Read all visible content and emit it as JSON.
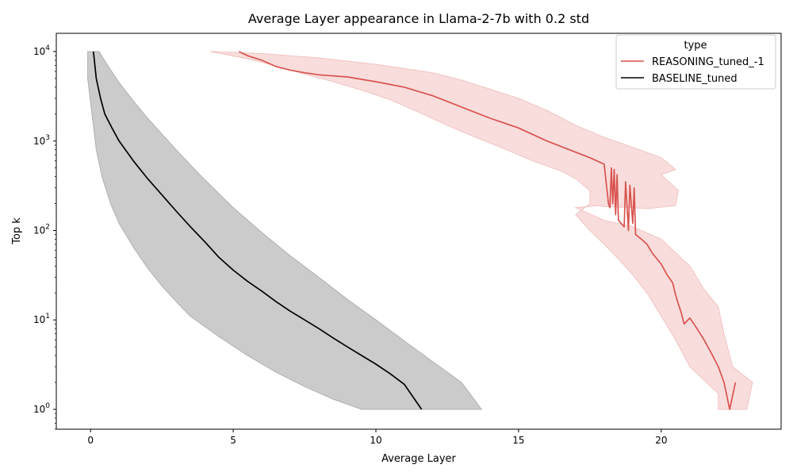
{
  "chart_data": {
    "type": "line",
    "title": "Average Layer appearance in Llama-2-7b with 0.2 std",
    "xlabel": "Average Layer",
    "ylabel": "Top k",
    "xlim": [
      -1.2,
      24.2
    ],
    "ylim": [
      0.6,
      16000
    ],
    "y_scale": "log",
    "grid": false,
    "x_ticks": [
      {
        "value": 0,
        "label": "0"
      },
      {
        "value": 5,
        "label": "5"
      },
      {
        "value": 10,
        "label": "10"
      },
      {
        "value": 15,
        "label": "15"
      },
      {
        "value": 20,
        "label": "20"
      }
    ],
    "y_ticks": [
      {
        "value": 1,
        "base": "10",
        "exp": "0"
      },
      {
        "value": 10,
        "base": "10",
        "exp": "1"
      },
      {
        "value": 100,
        "base": "10",
        "exp": "2"
      },
      {
        "value": 1000,
        "base": "10",
        "exp": "3"
      },
      {
        "value": 10000,
        "base": "10",
        "exp": "4"
      }
    ],
    "legend": {
      "title": "type",
      "placement": "top-right",
      "entries": [
        "REASONING_tuned_-1",
        "BASELINE_tuned"
      ]
    },
    "series": [
      {
        "name": "BASELINE_tuned",
        "color": "#000000",
        "band_color": "#c8c8c8",
        "line": [
          [
            0.1,
            10000
          ],
          [
            0.2,
            5000
          ],
          [
            0.35,
            3000
          ],
          [
            0.5,
            2000
          ],
          [
            0.75,
            1400
          ],
          [
            1.0,
            1000
          ],
          [
            1.5,
            600
          ],
          [
            2.0,
            380
          ],
          [
            2.5,
            250
          ],
          [
            3.0,
            165
          ],
          [
            3.5,
            110
          ],
          [
            4.0,
            75
          ],
          [
            4.5,
            50
          ],
          [
            5.0,
            36
          ],
          [
            5.5,
            27
          ],
          [
            6.0,
            21
          ],
          [
            6.5,
            16
          ],
          [
            7.0,
            12.5
          ],
          [
            7.5,
            10
          ],
          [
            8.0,
            8
          ],
          [
            8.5,
            6.3
          ],
          [
            9.0,
            5
          ],
          [
            9.5,
            4
          ],
          [
            10.0,
            3.2
          ],
          [
            10.5,
            2.5
          ],
          [
            11.0,
            1.9
          ],
          [
            11.6,
            1.0
          ]
        ],
        "band_upper": [
          [
            -0.1,
            10000
          ],
          [
            0.3,
            10000
          ],
          [
            0.6,
            7000
          ],
          [
            1.0,
            4500
          ],
          [
            1.5,
            2800
          ],
          [
            2.0,
            1800
          ],
          [
            2.5,
            1200
          ],
          [
            3.0,
            800
          ],
          [
            3.5,
            540
          ],
          [
            4.0,
            370
          ],
          [
            5.0,
            180
          ],
          [
            6.0,
            95
          ],
          [
            7.0,
            52
          ],
          [
            8.0,
            30
          ],
          [
            9.0,
            17
          ],
          [
            10.0,
            10
          ],
          [
            11.0,
            5.8
          ],
          [
            12.0,
            3.4
          ],
          [
            13.0,
            2.0
          ],
          [
            13.7,
            1.0
          ]
        ],
        "band_lower": [
          [
            9.5,
            1.0
          ],
          [
            8.5,
            1.3
          ],
          [
            7.5,
            1.8
          ],
          [
            6.5,
            2.6
          ],
          [
            5.5,
            4.0
          ],
          [
            4.5,
            6.5
          ],
          [
            3.5,
            11
          ],
          [
            3.0,
            16
          ],
          [
            2.5,
            24
          ],
          [
            2.0,
            38
          ],
          [
            1.5,
            65
          ],
          [
            1.0,
            120
          ],
          [
            0.7,
            200
          ],
          [
            0.4,
            400
          ],
          [
            0.2,
            800
          ],
          [
            0.05,
            2000
          ],
          [
            -0.1,
            5000
          ],
          [
            -0.1,
            10000
          ]
        ]
      },
      {
        "name": "REASONING_tuned_-1",
        "color": "#d9534f",
        "band_color": "#f7d9d8",
        "line": [
          [
            5.2,
            10000
          ],
          [
            5.5,
            9000
          ],
          [
            6.0,
            8000
          ],
          [
            6.5,
            6800
          ],
          [
            7.0,
            6200
          ],
          [
            7.5,
            5800
          ],
          [
            8.0,
            5500
          ],
          [
            9.0,
            5200
          ],
          [
            10.0,
            4600
          ],
          [
            11.0,
            4000
          ],
          [
            12.0,
            3200
          ],
          [
            13.0,
            2400
          ],
          [
            14.0,
            1800
          ],
          [
            15.0,
            1400
          ],
          [
            16.0,
            1000
          ],
          [
            17.0,
            750
          ],
          [
            17.5,
            650
          ],
          [
            18.0,
            550
          ],
          [
            18.15,
            200
          ],
          [
            18.2,
            180
          ],
          [
            18.25,
            500
          ],
          [
            18.3,
            200
          ],
          [
            18.35,
            480
          ],
          [
            18.4,
            150
          ],
          [
            18.45,
            420
          ],
          [
            18.5,
            130
          ],
          [
            18.7,
            110
          ],
          [
            18.75,
            350
          ],
          [
            18.85,
            100
          ],
          [
            18.9,
            320
          ],
          [
            19.0,
            120
          ],
          [
            19.05,
            300
          ],
          [
            19.1,
            90
          ],
          [
            19.3,
            80
          ],
          [
            19.5,
            70
          ],
          [
            19.7,
            55
          ],
          [
            20.0,
            42
          ],
          [
            20.2,
            32
          ],
          [
            20.4,
            26
          ],
          [
            20.5,
            19
          ],
          [
            20.6,
            15
          ],
          [
            20.7,
            12
          ],
          [
            20.8,
            9
          ],
          [
            21.0,
            10.5
          ],
          [
            21.2,
            8.5
          ],
          [
            21.5,
            6
          ],
          [
            21.8,
            4
          ],
          [
            22.0,
            3
          ],
          [
            22.2,
            2
          ],
          [
            22.4,
            1.0
          ],
          [
            22.6,
            2.0
          ]
        ],
        "band_upper": [
          [
            4.2,
            10000
          ],
          [
            6.0,
            9500
          ],
          [
            8.0,
            8500
          ],
          [
            10.0,
            7200
          ],
          [
            12.0,
            5800
          ],
          [
            13.0,
            4800
          ],
          [
            14.0,
            3800
          ],
          [
            15.0,
            3000
          ],
          [
            16.0,
            2200
          ],
          [
            17.0,
            1500
          ],
          [
            18.0,
            1100
          ],
          [
            19.0,
            850
          ],
          [
            20.0,
            650
          ],
          [
            20.5,
            480
          ],
          [
            20.0,
            420
          ],
          [
            20.6,
            280
          ],
          [
            20.5,
            190
          ],
          [
            19.5,
            175
          ],
          [
            19.0,
            180
          ],
          [
            18.0,
            185
          ],
          [
            17.8,
            190
          ],
          [
            17.0,
            180
          ],
          [
            18.0,
            130
          ],
          [
            19.0,
            110
          ],
          [
            20.0,
            80
          ],
          [
            21.0,
            40
          ],
          [
            21.5,
            22
          ],
          [
            22.0,
            14
          ],
          [
            22.2,
            7
          ],
          [
            22.5,
            3
          ],
          [
            23.2,
            2.0
          ],
          [
            23.0,
            1.0
          ]
        ],
        "band_lower": [
          [
            22.0,
            1.0
          ],
          [
            22.0,
            1.5
          ],
          [
            21.0,
            3
          ],
          [
            20.5,
            6
          ],
          [
            20.0,
            11
          ],
          [
            19.5,
            20
          ],
          [
            19.0,
            32
          ],
          [
            18.5,
            48
          ],
          [
            18.0,
            70
          ],
          [
            17.5,
            100
          ],
          [
            17.0,
            150
          ],
          [
            17.5,
            200
          ],
          [
            17.5,
            280
          ],
          [
            17.0,
            380
          ],
          [
            16.5,
            460
          ],
          [
            15.5,
            600
          ],
          [
            14.5,
            820
          ],
          [
            13.5,
            1100
          ],
          [
            12.5,
            1500
          ],
          [
            11.5,
            2100
          ],
          [
            10.5,
            2900
          ],
          [
            9.5,
            3700
          ],
          [
            8.5,
            4600
          ],
          [
            7.5,
            5600
          ],
          [
            6.5,
            6900
          ],
          [
            5.5,
            8300
          ],
          [
            4.2,
            10000
          ]
        ]
      }
    ]
  }
}
